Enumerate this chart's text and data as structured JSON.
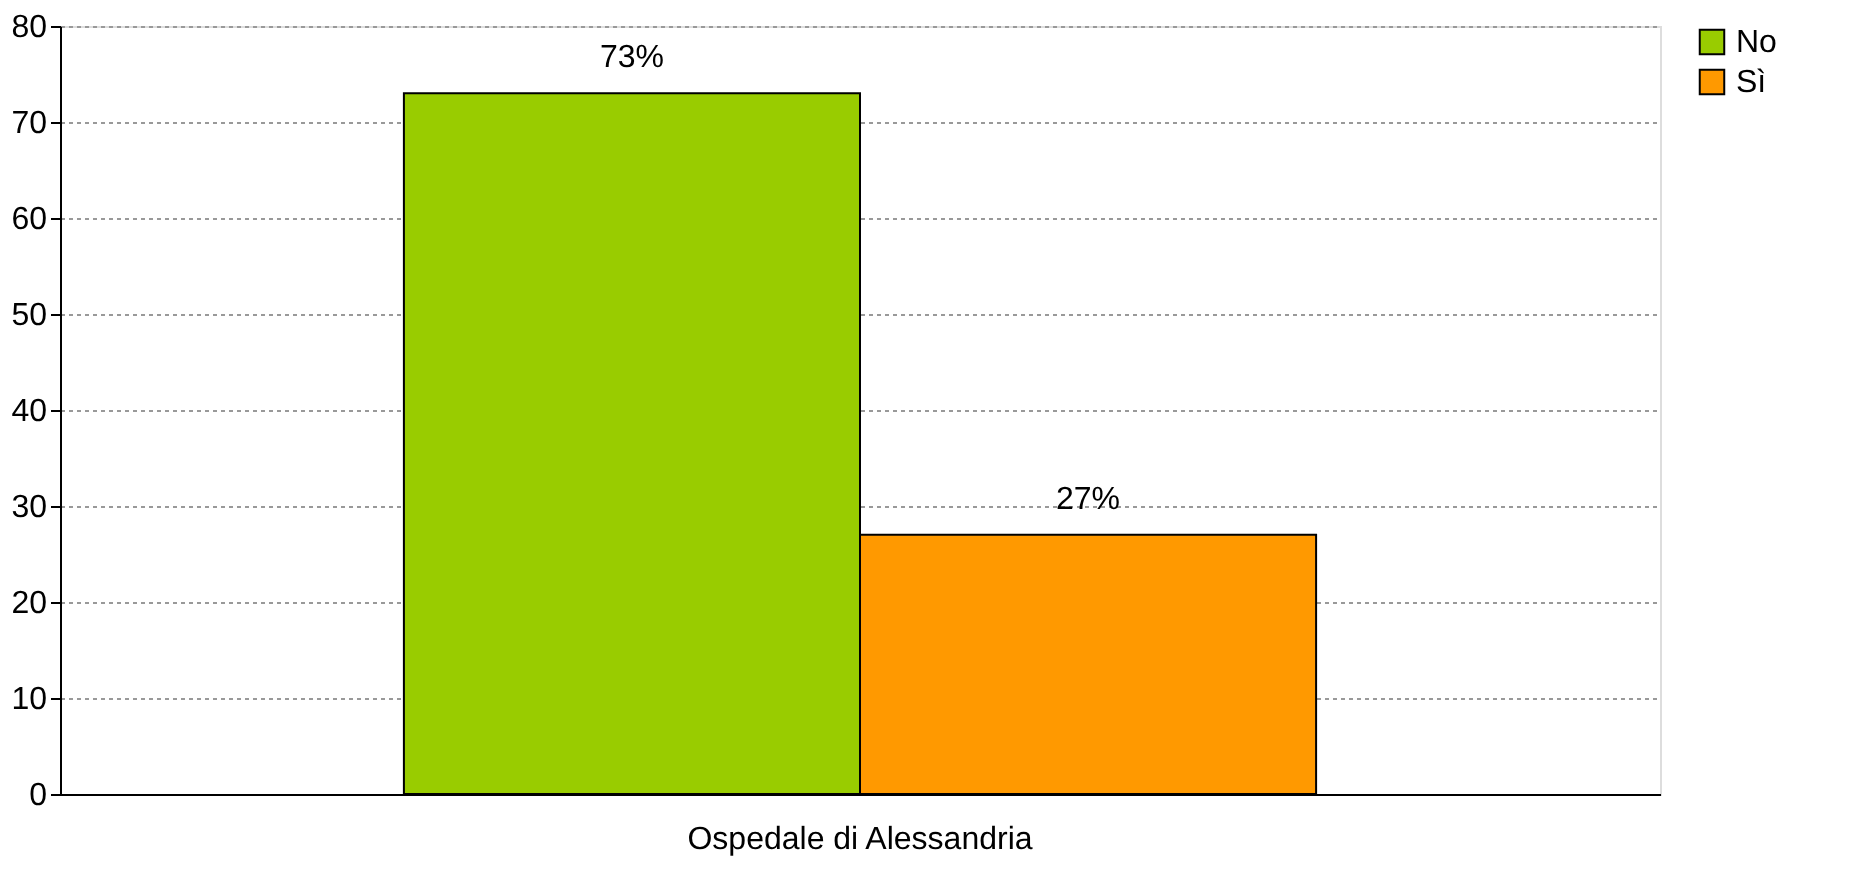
{
  "chart_data": {
    "type": "bar",
    "categories": [
      "Ospedale di Alessandria"
    ],
    "series": [
      {
        "name": "No",
        "color": "#99cc00",
        "values": [
          73
        ],
        "value_labels": [
          "73%"
        ]
      },
      {
        "name": "Sì",
        "color": "#ff9900",
        "values": [
          27
        ],
        "value_labels": [
          "27%"
        ]
      }
    ],
    "ylim": [
      0,
      80
    ],
    "yticks": [
      0,
      10,
      20,
      30,
      40,
      50,
      60,
      70,
      80
    ],
    "grid": "y",
    "legend": "right"
  }
}
